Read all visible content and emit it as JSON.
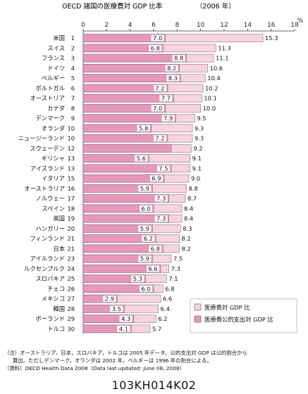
{
  "chart_data": {
    "type": "bar",
    "title": "OECD 諸国の医療費対 GDP 比率",
    "subtitle": "（2006 年）",
    "unit_label": "%",
    "xlim": [
      0,
      18
    ],
    "xticks": [
      "0",
      "2",
      "4",
      "6",
      "8",
      "10",
      "12",
      "14",
      "16",
      "18"
    ],
    "legend_position": "bottom-right",
    "categories": [
      {
        "name": "米国",
        "rank": "1"
      },
      {
        "name": "スイス",
        "rank": "2"
      },
      {
        "name": "フランス",
        "rank": "3"
      },
      {
        "name": "ドイツ",
        "rank": "4"
      },
      {
        "name": "ベルギー",
        "rank": "5"
      },
      {
        "name": "ポルトガル",
        "rank": "6"
      },
      {
        "name": "オーストリア",
        "rank": "7"
      },
      {
        "name": "カナダ",
        "rank": "8"
      },
      {
        "name": "デンマーク",
        "rank": "9"
      },
      {
        "name": "オランダ",
        "rank": "10"
      },
      {
        "name": "ニュージーランド",
        "rank": "10"
      },
      {
        "name": "スウェーデン",
        "rank": "12"
      },
      {
        "name": "ギリシャ",
        "rank": "13"
      },
      {
        "name": "アイスランド",
        "rank": "13"
      },
      {
        "name": "イタリア",
        "rank": "15"
      },
      {
        "name": "オーストラリア",
        "rank": "16"
      },
      {
        "name": "ノルウェー",
        "rank": "17"
      },
      {
        "name": "スペイン",
        "rank": "18"
      },
      {
        "name": "英国",
        "rank": "19"
      },
      {
        "name": "ハンガリー",
        "rank": "20"
      },
      {
        "name": "フィンランド",
        "rank": "21"
      },
      {
        "name": "日本",
        "rank": "21"
      },
      {
        "name": "アイルランド",
        "rank": "23"
      },
      {
        "name": "ルクセンブルク",
        "rank": "24"
      },
      {
        "name": "スロバキア",
        "rank": "25"
      },
      {
        "name": "チェコ",
        "rank": "26"
      },
      {
        "name": "メキシコ",
        "rank": "27"
      },
      {
        "name": "韓国",
        "rank": "28"
      },
      {
        "name": "ポーランド",
        "rank": "29"
      },
      {
        "name": "トルコ",
        "rank": "30"
      }
    ],
    "series": [
      {
        "name": "医療費対 GDP 比",
        "color": "#f9d3e1",
        "values": [
          15.3,
          11.3,
          11.1,
          10.6,
          10.4,
          10.2,
          10.1,
          10.0,
          9.5,
          9.3,
          9.3,
          9.2,
          9.1,
          9.1,
          9.0,
          8.8,
          8.7,
          8.4,
          8.4,
          8.3,
          8.2,
          8.2,
          7.5,
          7.3,
          7.1,
          6.8,
          6.6,
          6.4,
          6.2,
          5.7
        ],
        "labels": [
          "15.3",
          "11.3",
          "11.1",
          "10.6",
          "10.4",
          "10.2",
          "10.1",
          "10.0",
          "9.5",
          "9.3",
          "9.3",
          "9.2",
          "9.1",
          "9.1",
          "9.0",
          "8.8",
          "8.7",
          "8.4",
          "8.4",
          "8.3",
          "8.2",
          "8.2",
          "7.5",
          "7.3",
          "7.1",
          "6.8",
          "6.6",
          "6.4",
          "6.2",
          "5.7"
        ]
      },
      {
        "name": "医療費公的支出対 GDP 比",
        "color": "#e996bb",
        "values": [
          7.0,
          6.8,
          8.8,
          8.2,
          8.3,
          7.2,
          7.7,
          7.0,
          7.9,
          5.8,
          7.2,
          7.5,
          5.6,
          7.5,
          6.9,
          5.9,
          7.3,
          6.0,
          7.3,
          5.9,
          6.2,
          6.8,
          5.9,
          6.6,
          5.3,
          6.0,
          2.9,
          3.5,
          4.3,
          4.1
        ],
        "labels": [
          "7.0",
          "6.8",
          "8.8",
          "8.2",
          "8.3",
          "7.2",
          "7.7",
          "7.0",
          "7.9",
          "5.8",
          "7.2",
          "",
          "5.6",
          "7.5",
          "6.9",
          "5.9",
          "7.3",
          "6.0",
          "7.3",
          "5.9",
          "6.2",
          "6.8",
          "5.9",
          "6.6",
          "5.3",
          "6.0",
          "2.9",
          "3.5",
          "4.3",
          "4.1"
        ]
      }
    ]
  },
  "notes": {
    "line1": "（注）オーストラリア，日本，スロバキア，トルコは 2005 年データ。公的支出対 GDP は公的割合から",
    "line2": "算出。ただしデンマーク，オランダは 2002 年，ベルギーは 1996 年の割合による。",
    "line3": "（資料）OECD Health Data 2008（Data last updated: June 08, 2008）"
  },
  "code": "103KH014K02"
}
